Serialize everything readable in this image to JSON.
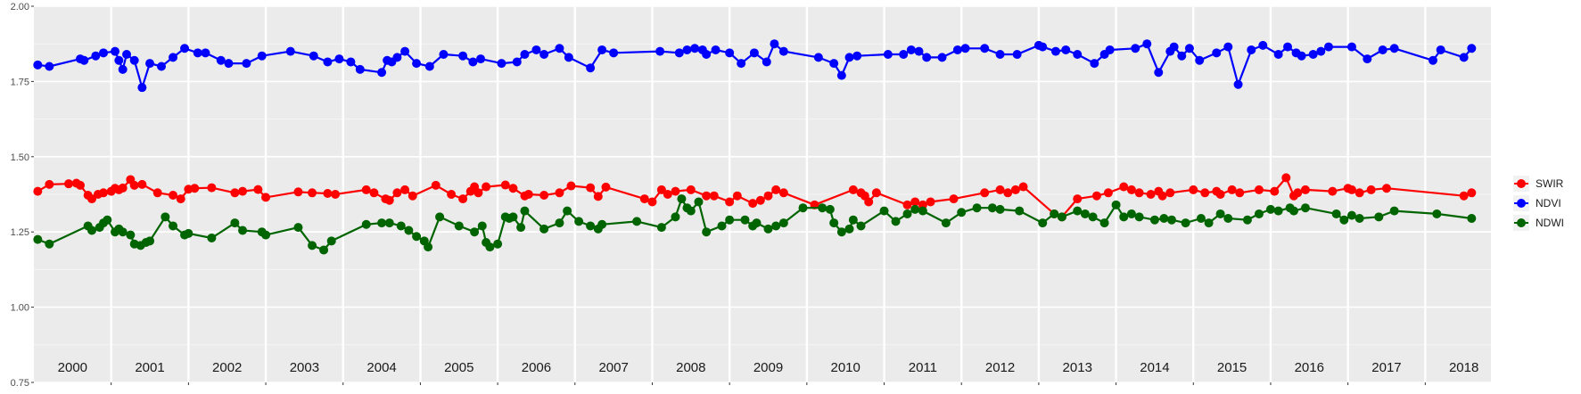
{
  "chart_data": {
    "type": "line",
    "title": "",
    "xlabel": "",
    "ylabel": "",
    "xlim": [
      2000.0,
      2018.85
    ],
    "ylim": [
      0.75,
      2.0
    ],
    "y_ticks": [
      "0.75",
      "1.00",
      "1.25",
      "1.50",
      "1.75",
      "2.00"
    ],
    "y_tick_values": [
      0.75,
      1.0,
      1.25,
      1.5,
      1.75,
      2.0
    ],
    "year_labels": [
      "2000",
      "2001",
      "2002",
      "2003",
      "2004",
      "2005",
      "2006",
      "2007",
      "2008",
      "2009",
      "2010",
      "2011",
      "2012",
      "2013",
      "2014",
      "2015",
      "2016",
      "2017",
      "2018"
    ],
    "grid": true,
    "legend_position": "right",
    "series": [
      {
        "name": "SWIR",
        "color": "#ff0000",
        "x": [
          2000.05,
          2000.2,
          2000.45,
          2000.55,
          2000.6,
          2000.7,
          2000.75,
          2000.83,
          2000.9,
          2001.0,
          2001.05,
          2001.1,
          2001.15,
          2001.25,
          2001.3,
          2001.4,
          2001.6,
          2001.8,
          2001.9,
          2002.0,
          2002.08,
          2002.3,
          2002.6,
          2002.7,
          2002.9,
          2003.0,
          2003.42,
          2003.6,
          2003.8,
          2003.9,
          2004.3,
          2004.4,
          2004.55,
          2004.6,
          2004.7,
          2004.8,
          2004.9,
          2005.2,
          2005.4,
          2005.55,
          2005.65,
          2005.7,
          2005.75,
          2005.85,
          2006.1,
          2006.2,
          2006.35,
          2006.4,
          2006.6,
          2006.8,
          2006.95,
          2007.2,
          2007.3,
          2007.4,
          2007.9,
          2008.0,
          2008.12,
          2008.2,
          2008.3,
          2008.5,
          2008.7,
          2008.8,
          2009.0,
          2009.1,
          2009.3,
          2009.4,
          2009.5,
          2009.6,
          2009.7,
          2010.1,
          2010.6,
          2010.7,
          2010.75,
          2010.8,
          2010.9,
          2011.3,
          2011.4,
          2011.5,
          2011.6,
          2011.9,
          2012.3,
          2012.5,
          2012.6,
          2012.7,
          2012.8,
          2013.2,
          2013.3,
          2013.5,
          2013.75,
          2013.9,
          2014.1,
          2014.2,
          2014.3,
          2014.45,
          2014.55,
          2014.6,
          2014.7,
          2015.0,
          2015.15,
          2015.3,
          2015.35,
          2015.5,
          2015.6,
          2015.85,
          2016.05,
          2016.2,
          2016.3,
          2016.35,
          2016.45,
          2016.8,
          2017.0,
          2017.05,
          2017.15,
          2017.3,
          2017.5,
          2018.5,
          2018.6
        ],
        "y": [
          1.385,
          1.408,
          1.41,
          1.412,
          1.405,
          1.372,
          1.36,
          1.375,
          1.38,
          1.385,
          1.395,
          1.39,
          1.396,
          1.424,
          1.405,
          1.408,
          1.38,
          1.372,
          1.36,
          1.392,
          1.395,
          1.397,
          1.38,
          1.385,
          1.391,
          1.365,
          1.383,
          1.38,
          1.378,
          1.375,
          1.39,
          1.38,
          1.36,
          1.355,
          1.38,
          1.39,
          1.37,
          1.405,
          1.375,
          1.36,
          1.385,
          1.4,
          1.38,
          1.4,
          1.406,
          1.395,
          1.37,
          1.375,
          1.372,
          1.38,
          1.403,
          1.397,
          1.368,
          1.399,
          1.36,
          1.35,
          1.39,
          1.375,
          1.385,
          1.39,
          1.37,
          1.37,
          1.35,
          1.37,
          1.345,
          1.355,
          1.37,
          1.39,
          1.38,
          1.34,
          1.39,
          1.38,
          1.37,
          1.35,
          1.38,
          1.34,
          1.35,
          1.34,
          1.35,
          1.36,
          1.38,
          1.39,
          1.38,
          1.39,
          1.4,
          1.31,
          1.3,
          1.36,
          1.37,
          1.38,
          1.4,
          1.39,
          1.38,
          1.375,
          1.385,
          1.37,
          1.38,
          1.39,
          1.38,
          1.385,
          1.375,
          1.39,
          1.38,
          1.39,
          1.385,
          1.43,
          1.37,
          1.38,
          1.39,
          1.385,
          1.395,
          1.39,
          1.38,
          1.39,
          1.395,
          1.37,
          1.38
        ]
      },
      {
        "name": "NDVI",
        "color": "#0000ff",
        "x": [
          2000.05,
          2000.2,
          2000.6,
          2000.65,
          2000.8,
          2000.9,
          2001.05,
          2001.1,
          2001.15,
          2001.2,
          2001.3,
          2001.4,
          2001.5,
          2001.65,
          2001.8,
          2001.95,
          2002.12,
          2002.22,
          2002.42,
          2002.52,
          2002.75,
          2002.95,
          2003.32,
          2003.62,
          2003.8,
          2003.95,
          2004.1,
          2004.22,
          2004.5,
          2004.57,
          2004.63,
          2004.7,
          2004.8,
          2004.95,
          2005.12,
          2005.3,
          2005.55,
          2005.68,
          2005.78,
          2006.05,
          2006.25,
          2006.35,
          2006.5,
          2006.6,
          2006.8,
          2006.92,
          2007.2,
          2007.35,
          2007.5,
          2008.1,
          2008.35,
          2008.45,
          2008.55,
          2008.65,
          2008.7,
          2008.82,
          2009.0,
          2009.15,
          2009.32,
          2009.48,
          2009.58,
          2009.7,
          2010.15,
          2010.35,
          2010.45,
          2010.55,
          2010.65,
          2011.05,
          2011.25,
          2011.35,
          2011.45,
          2011.55,
          2011.75,
          2011.95,
          2012.05,
          2012.3,
          2012.5,
          2012.72,
          2013.0,
          2013.05,
          2013.22,
          2013.35,
          2013.5,
          2013.72,
          2013.85,
          2013.92,
          2014.25,
          2014.4,
          2014.55,
          2014.7,
          2014.75,
          2014.85,
          2014.95,
          2015.08,
          2015.3,
          2015.45,
          2015.58,
          2015.75,
          2015.9,
          2016.1,
          2016.22,
          2016.33,
          2016.4,
          2016.55,
          2016.65,
          2016.75,
          2017.05,
          2017.25,
          2017.45,
          2017.6,
          2018.1,
          2018.2,
          2018.5,
          2018.6
        ],
        "y": [
          1.805,
          1.8,
          1.825,
          1.82,
          1.835,
          1.845,
          1.85,
          1.82,
          1.79,
          1.84,
          1.82,
          1.73,
          1.81,
          1.8,
          1.83,
          1.86,
          1.845,
          1.845,
          1.82,
          1.81,
          1.81,
          1.835,
          1.85,
          1.835,
          1.815,
          1.825,
          1.815,
          1.79,
          1.78,
          1.82,
          1.815,
          1.83,
          1.85,
          1.81,
          1.8,
          1.84,
          1.835,
          1.815,
          1.825,
          1.81,
          1.815,
          1.84,
          1.855,
          1.84,
          1.86,
          1.83,
          1.795,
          1.855,
          1.845,
          1.85,
          1.845,
          1.855,
          1.86,
          1.855,
          1.84,
          1.855,
          1.845,
          1.81,
          1.845,
          1.815,
          1.875,
          1.85,
          1.83,
          1.81,
          1.77,
          1.83,
          1.835,
          1.84,
          1.84,
          1.855,
          1.85,
          1.83,
          1.83,
          1.855,
          1.86,
          1.86,
          1.84,
          1.84,
          1.87,
          1.865,
          1.85,
          1.855,
          1.84,
          1.81,
          1.84,
          1.855,
          1.86,
          1.875,
          1.78,
          1.85,
          1.865,
          1.835,
          1.86,
          1.82,
          1.845,
          1.865,
          1.74,
          1.855,
          1.87,
          1.84,
          1.865,
          1.845,
          1.835,
          1.84,
          1.85,
          1.865,
          1.865,
          1.825,
          1.855,
          1.86,
          1.82,
          1.855,
          1.83,
          1.86
        ]
      },
      {
        "name": "NDWI",
        "color": "#006400",
        "x": [
          2000.05,
          2000.2,
          2000.7,
          2000.75,
          2000.85,
          2000.9,
          2000.95,
          2001.05,
          2001.1,
          2001.15,
          2001.25,
          2001.3,
          2001.38,
          2001.45,
          2001.5,
          2001.7,
          2001.8,
          2001.95,
          2002.0,
          2002.3,
          2002.6,
          2002.7,
          2002.95,
          2003.0,
          2003.42,
          2003.6,
          2003.75,
          2003.85,
          2004.3,
          2004.5,
          2004.6,
          2004.75,
          2004.85,
          2004.95,
          2005.05,
          2005.1,
          2005.25,
          2005.5,
          2005.7,
          2005.8,
          2005.85,
          2005.9,
          2006.0,
          2006.1,
          2006.15,
          2006.2,
          2006.3,
          2006.35,
          2006.6,
          2006.8,
          2006.9,
          2007.05,
          2007.2,
          2007.3,
          2007.35,
          2007.8,
          2008.12,
          2008.3,
          2008.38,
          2008.45,
          2008.5,
          2008.6,
          2008.7,
          2008.9,
          2009.0,
          2009.2,
          2009.3,
          2009.35,
          2009.5,
          2009.6,
          2009.7,
          2009.95,
          2010.2,
          2010.3,
          2010.35,
          2010.45,
          2010.55,
          2010.6,
          2010.7,
          2011.0,
          2011.15,
          2011.3,
          2011.4,
          2011.5,
          2011.8,
          2012.0,
          2012.2,
          2012.4,
          2012.5,
          2012.75,
          2013.05,
          2013.2,
          2013.3,
          2013.5,
          2013.6,
          2013.7,
          2013.85,
          2014.0,
          2014.1,
          2014.2,
          2014.3,
          2014.5,
          2014.62,
          2014.72,
          2014.9,
          2015.1,
          2015.2,
          2015.35,
          2015.45,
          2015.7,
          2015.85,
          2016.0,
          2016.1,
          2016.25,
          2016.3,
          2016.45,
          2016.85,
          2016.95,
          2017.05,
          2017.15,
          2017.4,
          2017.6,
          2018.15,
          2018.6
        ],
        "y": [
          1.225,
          1.21,
          1.27,
          1.255,
          1.265,
          1.28,
          1.29,
          1.25,
          1.26,
          1.25,
          1.24,
          1.21,
          1.205,
          1.215,
          1.22,
          1.3,
          1.27,
          1.24,
          1.245,
          1.23,
          1.28,
          1.255,
          1.25,
          1.24,
          1.265,
          1.205,
          1.19,
          1.22,
          1.275,
          1.28,
          1.28,
          1.27,
          1.255,
          1.235,
          1.22,
          1.2,
          1.3,
          1.27,
          1.25,
          1.27,
          1.215,
          1.2,
          1.21,
          1.3,
          1.295,
          1.3,
          1.265,
          1.32,
          1.26,
          1.28,
          1.32,
          1.285,
          1.27,
          1.26,
          1.275,
          1.285,
          1.265,
          1.3,
          1.36,
          1.33,
          1.32,
          1.35,
          1.25,
          1.27,
          1.29,
          1.29,
          1.27,
          1.28,
          1.26,
          1.27,
          1.28,
          1.33,
          1.33,
          1.325,
          1.28,
          1.25,
          1.26,
          1.29,
          1.27,
          1.32,
          1.285,
          1.31,
          1.325,
          1.32,
          1.28,
          1.315,
          1.33,
          1.33,
          1.325,
          1.32,
          1.28,
          1.31,
          1.3,
          1.32,
          1.31,
          1.3,
          1.28,
          1.34,
          1.3,
          1.31,
          1.3,
          1.29,
          1.295,
          1.29,
          1.28,
          1.295,
          1.28,
          1.31,
          1.295,
          1.29,
          1.31,
          1.325,
          1.32,
          1.33,
          1.32,
          1.33,
          1.31,
          1.29,
          1.305,
          1.295,
          1.3,
          1.32,
          1.31,
          1.295
        ]
      }
    ]
  },
  "legend": {
    "items": [
      {
        "name": "SWIR",
        "color": "#ff0000"
      },
      {
        "name": "NDVI",
        "color": "#0000ff"
      },
      {
        "name": "NDWI",
        "color": "#006400"
      }
    ]
  }
}
